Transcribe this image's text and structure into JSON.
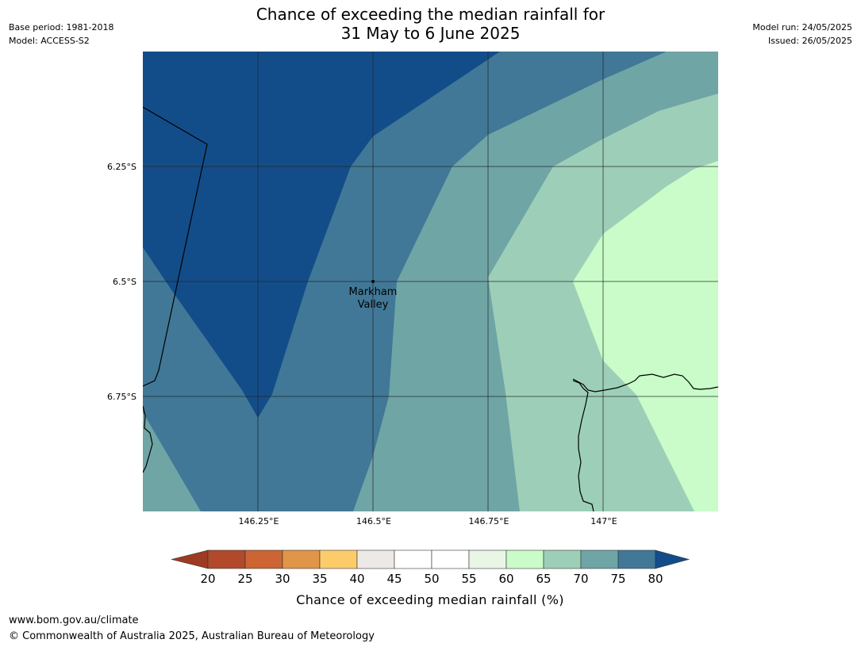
{
  "header": {
    "title_line1": "Chance of exceeding the median rainfall for",
    "title_line2": "31 May to 6 June 2025",
    "base_period": "Base period: 1981-2018",
    "model": "Model: ACCESS-S2",
    "model_run": "Model run: 24/05/2025",
    "issued": "Issued: 26/05/2025"
  },
  "map": {
    "lat_labels": [
      "6.25°S",
      "6.5°S",
      "6.75°S"
    ],
    "lon_labels": [
      "146.25°E",
      "146.5°E",
      "146.75°E",
      "147°E"
    ],
    "place": {
      "line1": "Markham",
      "line2": "Valley"
    }
  },
  "colorbar": {
    "title": "Chance of exceeding median rainfall (%)",
    "ticks": [
      "20",
      "25",
      "30",
      "35",
      "40",
      "45",
      "50",
      "55",
      "60",
      "65",
      "70",
      "75",
      "80"
    ],
    "colors": [
      "#b2492a",
      "#cc6433",
      "#e19549",
      "#fdcc6a",
      "#ece9e6",
      "#ffffff",
      "#ffffff",
      "#e9f6e6",
      "#c9fcc9",
      "#9dcfb8",
      "#70a5a6",
      "#417897"
    ],
    "under_color": "#9c3a24",
    "over_color": "#134d89"
  },
  "footer": {
    "url": "www.bom.gov.au/climate",
    "copyright": "© Commonwealth of Australia 2025, Australian Bureau of Meteorology"
  }
}
